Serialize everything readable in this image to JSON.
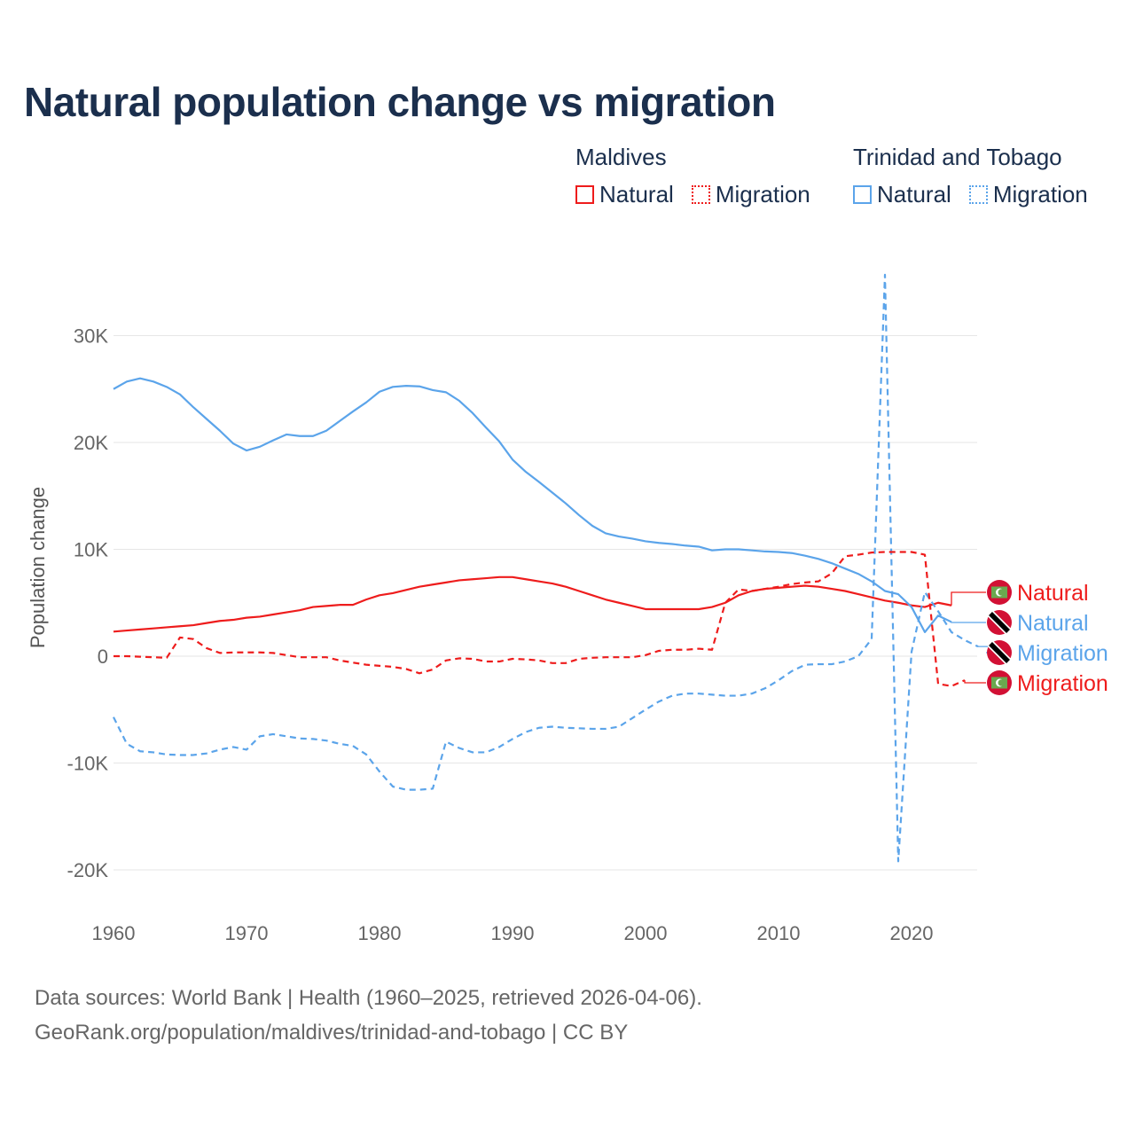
{
  "title": "Natural population change vs migration",
  "legend": [
    {
      "group": "Maldives",
      "items": [
        {
          "label": "Natural",
          "style": "solid",
          "color": "#ee1c1c"
        },
        {
          "label": "Migration",
          "style": "dotted",
          "color": "#ee1c1c"
        }
      ]
    },
    {
      "group": "Trinidad and Tobago",
      "items": [
        {
          "label": "Natural",
          "style": "solid",
          "color": "#5ba4ea"
        },
        {
          "label": "Migration",
          "style": "dotted",
          "color": "#5ba4ea"
        }
      ]
    }
  ],
  "source": {
    "line1": "Data sources: World Bank | Health (1960–2025, retrieved 2026-04-06).",
    "line2": "GeoRank.org/population/maldives/trinidad-and-tobago | CC BY"
  },
  "chart_data": {
    "type": "line",
    "title": "Natural population change vs migration",
    "xlabel": "",
    "ylabel": "Population change",
    "xlim": [
      1960,
      2025
    ],
    "ylim": [
      -22000,
      36000
    ],
    "x_ticks": [
      1960,
      1970,
      1980,
      1990,
      2000,
      2010,
      2020
    ],
    "y_ticks": [
      {
        "v": 30000,
        "label": "30K"
      },
      {
        "v": 20000,
        "label": "20K"
      },
      {
        "v": 10000,
        "label": "10K"
      },
      {
        "v": 0,
        "label": "0"
      },
      {
        "v": -10000,
        "label": "-10K"
      },
      {
        "v": -20000,
        "label": "-20K"
      }
    ],
    "grid": true,
    "series": [
      {
        "name": "Maldives Natural",
        "end_label": "Natural",
        "country": "Maldives",
        "color": "#ee1c1c",
        "dash": false,
        "label_order": 0,
        "start": 1960,
        "values": [
          2.3,
          2.4,
          2.5,
          2.6,
          2.7,
          2.8,
          2.9,
          3.1,
          3.3,
          3.4,
          3.6,
          3.7,
          3.9,
          4.1,
          4.3,
          4.6,
          4.7,
          4.8,
          4.8,
          5.3,
          5.7,
          5.9,
          6.2,
          6.5,
          6.7,
          6.9,
          7.1,
          7.2,
          7.3,
          7.4,
          7.4,
          7.2,
          7.0,
          6.8,
          6.5,
          6.1,
          5.7,
          5.3,
          5.0,
          4.7,
          4.4,
          4.4,
          4.4,
          4.4,
          4.4,
          4.6,
          5.0,
          5.7,
          6.1,
          6.3,
          6.4,
          6.5,
          6.6,
          6.5,
          6.3,
          6.1,
          5.8,
          5.5,
          5.2,
          5.0,
          4.75,
          4.6,
          5.0,
          4.75
        ]
      },
      {
        "name": "Trinidad and Tobago Natural",
        "end_label": "Natural",
        "country": "Trinidad and Tobago",
        "color": "#5ba4ea",
        "dash": false,
        "label_order": 1,
        "start": 1960,
        "values": [
          25.0,
          25.7,
          26.0,
          25.7,
          25.2,
          24.5,
          23.3,
          22.2,
          21.1,
          19.9,
          19.25,
          19.6,
          20.2,
          20.75,
          20.6,
          20.6,
          21.1,
          22.0,
          22.9,
          23.75,
          24.75,
          25.2,
          25.3,
          25.25,
          24.9,
          24.7,
          23.9,
          22.75,
          21.4,
          20.1,
          18.4,
          17.25,
          16.3,
          15.3,
          14.3,
          13.2,
          12.2,
          11.5,
          11.2,
          11.0,
          10.75,
          10.6,
          10.5,
          10.35,
          10.25,
          9.9,
          10.0,
          10.0,
          9.9,
          9.8,
          9.75,
          9.65,
          9.4,
          9.1,
          8.7,
          8.2,
          7.7,
          7.0,
          6.1,
          5.8,
          4.6,
          2.25,
          3.8,
          3.2
        ]
      },
      {
        "name": "Trinidad and Tobago Migration",
        "end_label": "Migration",
        "country": "Trinidad and Tobago",
        "color": "#5ba4ea",
        "dash": true,
        "label_order": 2,
        "start": 1960,
        "values": [
          -5.7,
          -8.2,
          -8.9,
          -9.0,
          -9.2,
          -9.25,
          -9.25,
          -9.1,
          -8.75,
          -8.5,
          -8.75,
          -7.5,
          -7.3,
          -7.5,
          -7.7,
          -7.75,
          -7.9,
          -8.2,
          -8.4,
          -9.2,
          -10.8,
          -12.2,
          -12.5,
          -12.5,
          -12.4,
          -8.0,
          -8.6,
          -9.0,
          -9.0,
          -8.5,
          -7.75,
          -7.1,
          -6.7,
          -6.6,
          -6.7,
          -6.75,
          -6.8,
          -6.8,
          -6.6,
          -5.8,
          -5.0,
          -4.25,
          -3.7,
          -3.5,
          -3.5,
          -3.6,
          -3.7,
          -3.7,
          -3.5,
          -3.0,
          -2.25,
          -1.4,
          -0.8,
          -0.75,
          -0.75,
          -0.5,
          0.0,
          1.6,
          35.7,
          -19.2,
          0.4,
          6.0,
          4.2,
          2.25,
          1.5,
          0.9
        ]
      },
      {
        "name": "Maldives Migration",
        "end_label": "Migration",
        "country": "Maldives",
        "color": "#ee1c1c",
        "dash": true,
        "label_order": 3,
        "start": 1960,
        "values": [
          0.0,
          0.0,
          -0.05,
          -0.1,
          -0.15,
          1.75,
          1.6,
          0.75,
          0.3,
          0.35,
          0.35,
          0.35,
          0.3,
          0.1,
          -0.1,
          -0.1,
          -0.1,
          -0.4,
          -0.6,
          -0.8,
          -0.9,
          -1.0,
          -1.2,
          -1.6,
          -1.25,
          -0.4,
          -0.2,
          -0.25,
          -0.5,
          -0.5,
          -0.25,
          -0.3,
          -0.4,
          -0.65,
          -0.65,
          -0.25,
          -0.15,
          -0.1,
          -0.1,
          -0.1,
          0.1,
          0.5,
          0.6,
          0.6,
          0.7,
          0.6,
          5.0,
          6.25,
          6.1,
          6.3,
          6.5,
          6.75,
          6.9,
          7.0,
          7.75,
          9.35,
          9.5,
          9.7,
          9.75,
          9.75,
          9.75,
          9.5,
          -2.6,
          -2.8,
          -2.25
        ]
      }
    ],
    "value_units": "thousands"
  }
}
